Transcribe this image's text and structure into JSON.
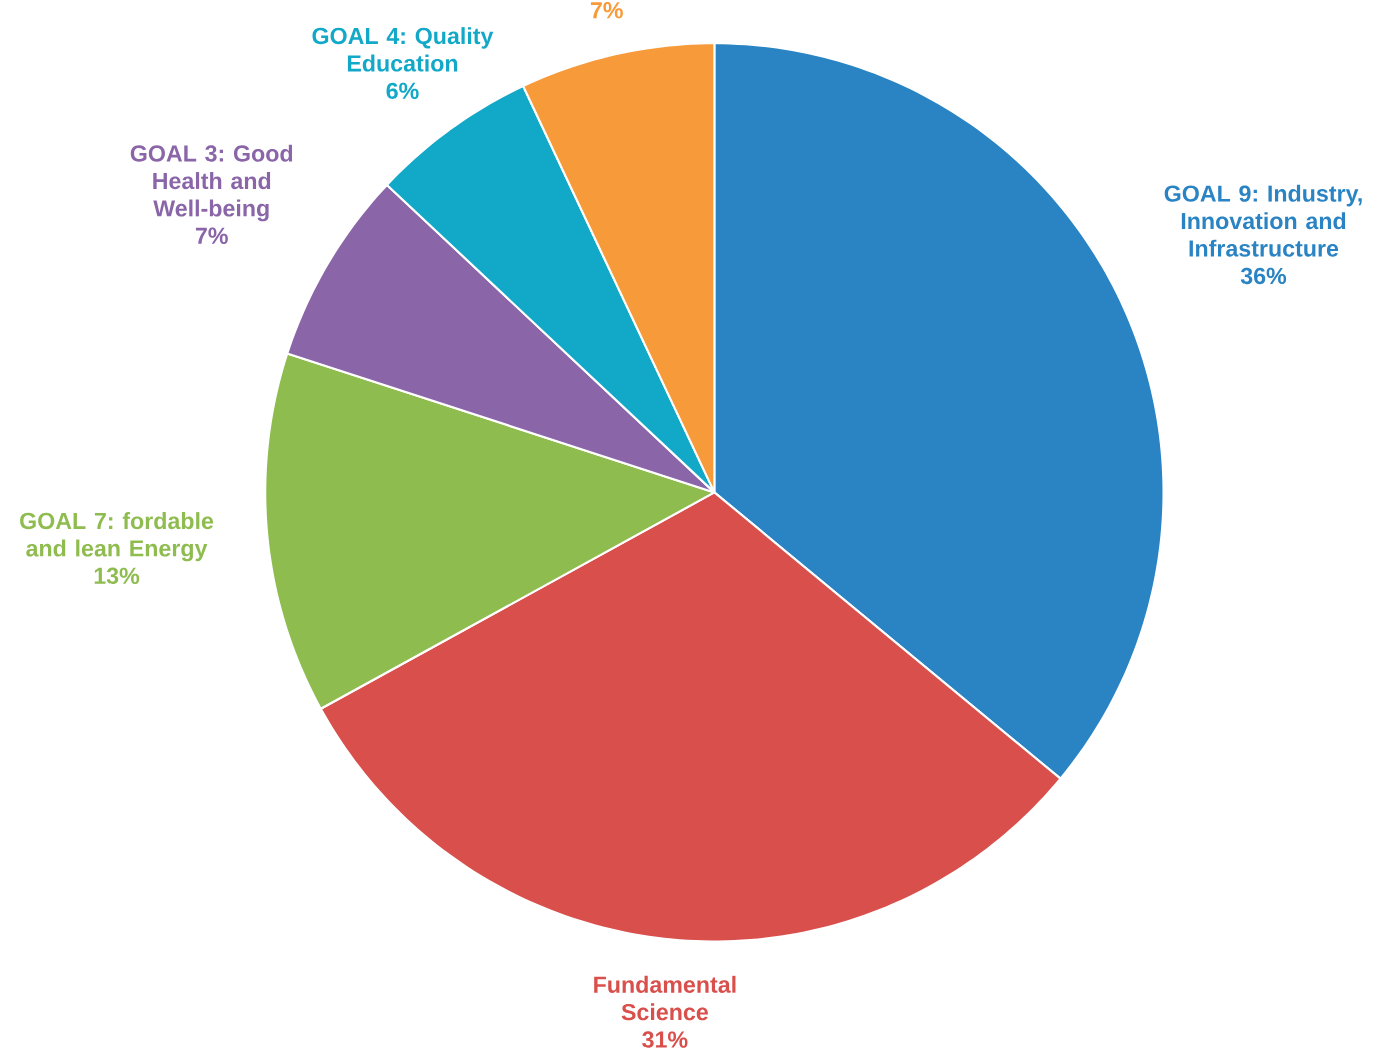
{
  "chart_data": {
    "type": "pie",
    "categories": [
      "GOAL 9: Industry, Innovation and Infrastructure",
      "Fundamental Science",
      "GOAL 7: fordable and lean Energy",
      "GOAL 3: Good Health and Well-being",
      "GOAL 4: Quality Education",
      null
    ],
    "values": [
      36,
      31,
      13,
      7,
      6,
      7
    ],
    "value_labels": [
      "36%",
      "31%",
      "13%",
      "7%",
      "6%",
      "7%"
    ],
    "colors": [
      "#2a84c4",
      "#d94f4b",
      "#8fbc4f",
      "#8a65a8",
      "#12a8c8",
      "#f79a3a"
    ]
  }
}
